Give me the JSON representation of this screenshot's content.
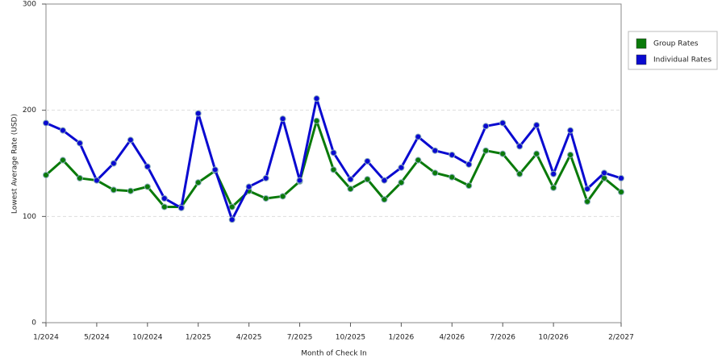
{
  "chart_data": {
    "type": "line",
    "x_label": "Month of Check In",
    "y_label": "Lowest Average Rate (USD)",
    "categories": [
      "1/2024",
      null,
      null,
      "5/2024",
      null,
      null,
      "10/2024",
      null,
      null,
      "1/2025",
      null,
      null,
      "4/2025",
      null,
      null,
      "7/2025",
      null,
      null,
      "10/2025",
      null,
      null,
      "1/2026",
      null,
      null,
      "4/2026",
      null,
      null,
      "7/2026",
      null,
      null,
      "10/2026",
      null,
      null,
      null,
      "2/2027"
    ],
    "series": [
      {
        "name": "Group Rates",
        "color": "#0a7a0a",
        "values": [
          139,
          153,
          136,
          134,
          125,
          124,
          128,
          109,
          109,
          132,
          143,
          109,
          124,
          117,
          119,
          133,
          190,
          144,
          126,
          135,
          116,
          132,
          153,
          141,
          137,
          129,
          162,
          159,
          140,
          159,
          127,
          158,
          114,
          136,
          123
        ]
      },
      {
        "name": "Individual Rates",
        "color": "#0a0ad0",
        "values": [
          188,
          181,
          169,
          134,
          150,
          172,
          147,
          117,
          108,
          197,
          144,
          97,
          128,
          136,
          192,
          134,
          211,
          160,
          135,
          152,
          134,
          146,
          175,
          162,
          158,
          149,
          185,
          188,
          166,
          186,
          140,
          181,
          126,
          141,
          136
        ]
      }
    ],
    "ylim": [
      0,
      300
    ],
    "yticks": [
      0,
      100,
      200,
      300
    ],
    "grid": true,
    "legend": "right"
  }
}
